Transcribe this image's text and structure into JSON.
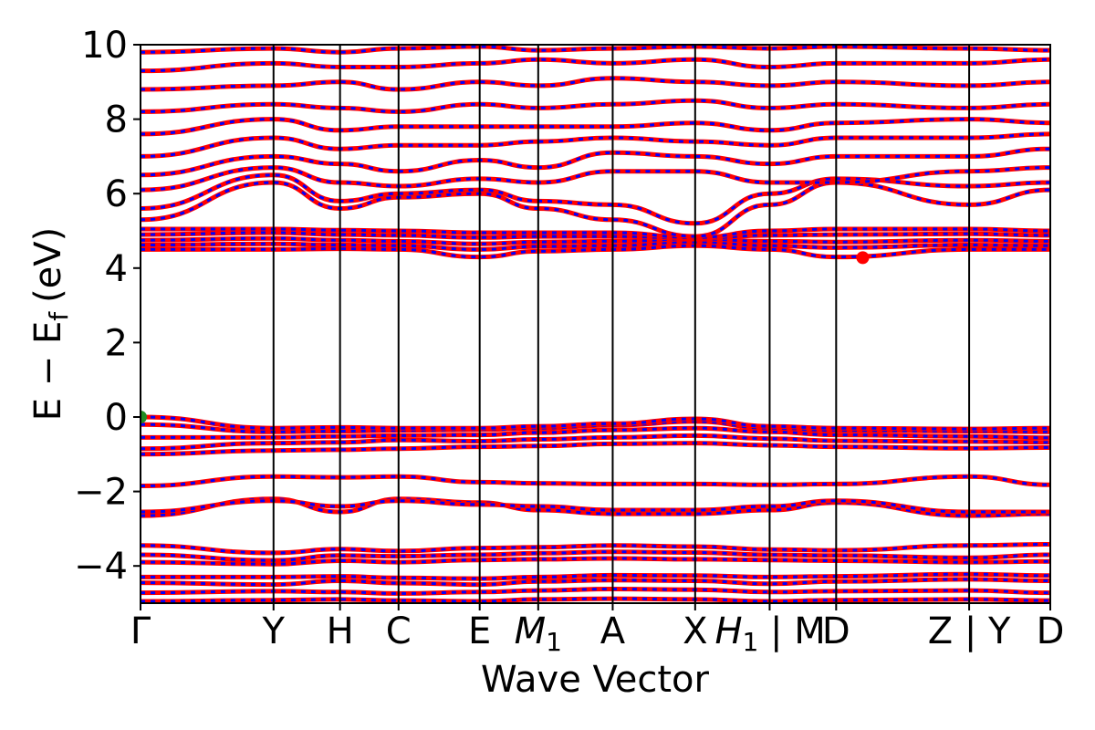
{
  "chart_data": {
    "type": "line",
    "title": "",
    "xlabel": "Wave Vector",
    "ylabel": "E − Eᶠ (eV)",
    "ylabel_parts": {
      "main": "E − E",
      "subscript": "f",
      "unit": "(eV)"
    },
    "ylim": [
      -5,
      10
    ],
    "yticks": [
      {
        "value": -4,
        "label": "−4"
      },
      {
        "value": -2,
        "label": "−2"
      },
      {
        "value": 0,
        "label": "0"
      },
      {
        "value": 2,
        "label": "2"
      },
      {
        "value": 4,
        "label": "4"
      },
      {
        "value": 6,
        "label": "6"
      },
      {
        "value": 8,
        "label": "8"
      },
      {
        "value": 10,
        "label": "10"
      }
    ],
    "xlim": [
      0,
      6.84
    ],
    "kpoints": [
      {
        "x": 0.0,
        "label": "Γ"
      },
      {
        "x": 1.0,
        "label": "Y"
      },
      {
        "x": 1.5,
        "label": "H"
      },
      {
        "x": 1.94,
        "label": "C"
      },
      {
        "x": 2.55,
        "label": "E"
      },
      {
        "x": 2.99,
        "label": "M",
        "sub": "1"
      },
      {
        "x": 3.55,
        "label": "A"
      },
      {
        "x": 4.17,
        "label": "X"
      },
      {
        "x": 4.73,
        "label": "H",
        "sub": "1",
        "suffix": " | M"
      },
      {
        "x": 5.23,
        "label": "D"
      },
      {
        "x": 6.23,
        "label": "Z | Y"
      },
      {
        "x": 6.84,
        "label": "D"
      }
    ],
    "grid": false,
    "legend": "none",
    "colors": {
      "band_a": "#ff0000",
      "band_b": "#0000ff",
      "kline": "#000000",
      "vbm": "#228b22",
      "cbm": "#ff0000"
    },
    "highlight_points": [
      {
        "name": "VBM",
        "x": 0.0,
        "y": 0.0,
        "color": "#228b22"
      },
      {
        "name": "CBM",
        "x": 5.43,
        "y": 4.28,
        "color": "#ff0000"
      }
    ],
    "bands": [
      {
        "name": "b1",
        "x": [
          0,
          1,
          1.5,
          1.94,
          2.55,
          2.99,
          3.55,
          4.17,
          4.73,
          5.23,
          6.23,
          6.84
        ],
        "y": [
          -4.95,
          -4.92,
          -4.9,
          -4.93,
          -4.95,
          -4.9,
          -4.88,
          -4.9,
          -4.95,
          -4.92,
          -4.9,
          -4.93
        ]
      },
      {
        "name": "b2",
        "x": [
          0,
          1,
          1.5,
          1.94,
          2.55,
          2.99,
          3.55,
          4.17,
          4.73,
          5.23,
          6.23,
          6.84
        ],
        "y": [
          -4.72,
          -4.68,
          -4.7,
          -4.74,
          -4.7,
          -4.66,
          -4.62,
          -4.64,
          -4.7,
          -4.68,
          -4.66,
          -4.72
        ]
      },
      {
        "name": "b3",
        "x": [
          0,
          1,
          1.5,
          1.94,
          2.55,
          2.99,
          3.55,
          4.17,
          4.73,
          5.23,
          6.23,
          6.84
        ],
        "y": [
          -4.45,
          -4.5,
          -4.4,
          -4.46,
          -4.5,
          -4.42,
          -4.38,
          -4.4,
          -4.48,
          -4.42,
          -4.36,
          -4.4
        ]
      },
      {
        "name": "b4",
        "x": [
          0,
          1,
          1.5,
          1.94,
          2.55,
          2.99,
          3.55,
          4.17,
          4.73,
          5.23,
          6.23,
          6.84
        ],
        "y": [
          -4.3,
          -4.3,
          -4.28,
          -4.32,
          -4.34,
          -4.3,
          -4.25,
          -4.26,
          -4.3,
          -4.28,
          -4.22,
          -4.26
        ]
      },
      {
        "name": "b5",
        "x": [
          0,
          1,
          1.5,
          1.94,
          2.55,
          2.99,
          3.55,
          4.17,
          4.73,
          5.23,
          6.23,
          6.84
        ],
        "y": [
          -3.9,
          -3.95,
          -3.86,
          -3.9,
          -3.84,
          -3.82,
          -3.8,
          -3.82,
          -3.84,
          -3.86,
          -3.9,
          -3.88
        ]
      },
      {
        "name": "b6",
        "x": [
          0,
          1,
          1.5,
          1.94,
          2.55,
          2.99,
          3.55,
          4.17,
          4.73,
          5.23,
          6.23,
          6.84
        ],
        "y": [
          -3.7,
          -3.85,
          -3.72,
          -3.74,
          -3.7,
          -3.66,
          -3.62,
          -3.64,
          -3.7,
          -3.72,
          -3.78,
          -3.7
        ]
      },
      {
        "name": "b7",
        "x": [
          0,
          1,
          1.5,
          1.94,
          2.55,
          2.99,
          3.55,
          4.17,
          4.73,
          5.23,
          6.23,
          6.84
        ],
        "y": [
          -3.45,
          -3.65,
          -3.55,
          -3.6,
          -3.52,
          -3.5,
          -3.45,
          -3.48,
          -3.56,
          -3.58,
          -3.45,
          -3.42
        ]
      },
      {
        "name": "b8",
        "x": [
          0,
          1,
          1.5,
          1.94,
          2.55,
          2.99,
          3.55,
          4.17,
          4.73,
          5.23,
          6.23,
          6.84
        ],
        "y": [
          -2.65,
          -2.2,
          -2.55,
          -2.2,
          -2.3,
          -2.5,
          -2.6,
          -2.6,
          -2.5,
          -2.3,
          -2.65,
          -2.6
        ]
      },
      {
        "name": "b9",
        "x": [
          0,
          1,
          1.5,
          1.94,
          2.55,
          2.99,
          3.55,
          4.17,
          4.73,
          5.23,
          6.23,
          6.84
        ],
        "y": [
          -2.55,
          -2.25,
          -2.4,
          -2.25,
          -2.35,
          -2.4,
          -2.5,
          -2.5,
          -2.4,
          -2.25,
          -2.55,
          -2.55
        ]
      },
      {
        "name": "b10",
        "x": [
          0,
          1,
          1.5,
          1.94,
          2.55,
          2.99,
          3.55,
          4.17,
          4.73,
          5.23,
          6.23,
          6.84
        ],
        "y": [
          -1.85,
          -1.6,
          -1.62,
          -1.6,
          -1.75,
          -1.78,
          -1.8,
          -1.8,
          -1.82,
          -1.8,
          -1.6,
          -1.82
        ]
      },
      {
        "name": "b11",
        "x": [
          0,
          1,
          1.5,
          1.94,
          2.55,
          2.99,
          3.55,
          4.17,
          4.73,
          5.23,
          6.23,
          6.84
        ],
        "y": [
          -1.0,
          -0.9,
          -0.88,
          -0.85,
          -0.8,
          -0.78,
          -0.72,
          -0.7,
          -0.76,
          -0.8,
          -0.84,
          -0.82
        ]
      },
      {
        "name": "b12",
        "x": [
          0,
          1,
          1.5,
          1.94,
          2.55,
          2.99,
          3.55,
          4.17,
          4.73,
          5.23,
          6.23,
          6.84
        ],
        "y": [
          -0.85,
          -0.7,
          -0.68,
          -0.62,
          -0.65,
          -0.6,
          -0.55,
          -0.5,
          -0.58,
          -0.64,
          -0.66,
          -0.68
        ]
      },
      {
        "name": "b13",
        "x": [
          0,
          1,
          1.5,
          1.94,
          2.55,
          2.99,
          3.55,
          4.17,
          4.73,
          5.23,
          6.23,
          6.84
        ],
        "y": [
          -0.55,
          -0.55,
          -0.52,
          -0.5,
          -0.48,
          -0.42,
          -0.35,
          -0.3,
          -0.4,
          -0.48,
          -0.52,
          -0.56
        ]
      },
      {
        "name": "b14",
        "x": [
          0,
          1,
          1.5,
          1.94,
          2.55,
          2.99,
          3.55,
          4.17,
          4.73,
          5.23,
          6.23,
          6.84
        ],
        "y": [
          -0.2,
          -0.4,
          -0.38,
          -0.36,
          -0.34,
          -0.3,
          -0.22,
          -0.12,
          -0.3,
          -0.36,
          -0.38,
          -0.4
        ]
      },
      {
        "name": "b15",
        "x": [
          0,
          1,
          1.5,
          1.94,
          2.55,
          2.99,
          3.55,
          4.17,
          4.73,
          5.23,
          6.23,
          6.84
        ],
        "y": [
          0.0,
          -0.3,
          -0.28,
          -0.3,
          -0.3,
          -0.25,
          -0.18,
          -0.05,
          -0.25,
          -0.3,
          -0.32,
          -0.3
        ]
      },
      {
        "name": "b16",
        "x": [
          0,
          1,
          1.5,
          1.94,
          2.55,
          2.99,
          3.55,
          4.17,
          4.73,
          5.23,
          6.23,
          6.84
        ],
        "y": [
          4.5,
          4.5,
          4.52,
          4.5,
          4.3,
          4.45,
          4.5,
          4.6,
          4.5,
          4.3,
          4.5,
          4.5
        ]
      },
      {
        "name": "b17",
        "x": [
          0,
          1,
          1.5,
          1.94,
          2.55,
          2.99,
          3.55,
          4.17,
          4.73,
          5.23,
          6.23,
          6.84
        ],
        "y": [
          4.62,
          4.65,
          4.62,
          4.6,
          4.5,
          4.58,
          4.6,
          4.7,
          4.6,
          4.55,
          4.62,
          4.6
        ]
      },
      {
        "name": "b18",
        "x": [
          0,
          1,
          1.5,
          1.94,
          2.55,
          2.99,
          3.55,
          4.17,
          4.73,
          5.23,
          6.23,
          6.84
        ],
        "y": [
          4.75,
          4.8,
          4.75,
          4.72,
          4.65,
          4.7,
          4.72,
          4.78,
          4.72,
          4.7,
          4.75,
          4.72
        ]
      },
      {
        "name": "b19",
        "x": [
          0,
          1,
          1.5,
          1.94,
          2.55,
          2.99,
          3.55,
          4.17,
          4.73,
          5.23,
          6.23,
          6.84
        ],
        "y": [
          4.9,
          4.95,
          4.9,
          4.88,
          4.82,
          4.85,
          4.85,
          4.8,
          4.88,
          4.9,
          4.92,
          4.88
        ]
      },
      {
        "name": "b20",
        "x": [
          0,
          1,
          1.5,
          1.94,
          2.55,
          2.99,
          3.55,
          4.17,
          4.73,
          5.23,
          6.23,
          6.84
        ],
        "y": [
          5.05,
          5.05,
          5.02,
          5.0,
          4.95,
          4.95,
          4.95,
          4.82,
          5.0,
          5.05,
          5.05,
          5.0
        ]
      },
      {
        "name": "b21",
        "x": [
          0,
          1,
          1.5,
          1.94,
          2.55,
          2.99,
          3.55,
          4.17,
          4.73,
          5.23,
          6.23,
          6.84
        ],
        "y": [
          5.3,
          6.3,
          5.6,
          5.9,
          6.0,
          5.6,
          5.3,
          4.85,
          5.7,
          6.3,
          5.7,
          6.1
        ]
      },
      {
        "name": "b22",
        "x": [
          0,
          1,
          1.5,
          1.94,
          2.55,
          2.99,
          3.55,
          4.17,
          4.73,
          5.23,
          6.23,
          6.84
        ],
        "y": [
          5.6,
          6.5,
          5.8,
          6.0,
          6.1,
          5.8,
          5.7,
          5.2,
          6.0,
          6.4,
          6.2,
          6.3
        ]
      },
      {
        "name": "b23",
        "x": [
          0,
          1,
          1.5,
          1.94,
          2.55,
          2.99,
          3.55,
          4.17,
          4.73,
          5.23,
          6.23,
          6.84
        ],
        "y": [
          6.1,
          6.7,
          6.3,
          6.2,
          6.4,
          6.3,
          6.6,
          6.6,
          6.3,
          6.3,
          6.6,
          6.7
        ]
      },
      {
        "name": "b24",
        "x": [
          0,
          1,
          1.5,
          1.94,
          2.55,
          2.99,
          3.55,
          4.17,
          4.73,
          5.23,
          6.23,
          6.84
        ],
        "y": [
          6.5,
          7.0,
          6.8,
          6.6,
          6.9,
          6.7,
          7.1,
          7.0,
          6.8,
          7.0,
          7.0,
          7.2
        ]
      },
      {
        "name": "b25",
        "x": [
          0,
          1,
          1.5,
          1.94,
          2.55,
          2.99,
          3.55,
          4.17,
          4.73,
          5.23,
          6.23,
          6.84
        ],
        "y": [
          7.0,
          7.5,
          7.2,
          7.3,
          7.3,
          7.4,
          7.5,
          7.4,
          7.3,
          7.5,
          7.5,
          7.6
        ]
      },
      {
        "name": "b26",
        "x": [
          0,
          1,
          1.5,
          1.94,
          2.55,
          2.99,
          3.55,
          4.17,
          4.73,
          5.23,
          6.23,
          6.84
        ],
        "y": [
          7.6,
          8.0,
          7.7,
          7.8,
          7.8,
          7.8,
          7.8,
          7.9,
          7.7,
          7.9,
          8.0,
          7.9
        ]
      },
      {
        "name": "b27",
        "x": [
          0,
          1,
          1.5,
          1.94,
          2.55,
          2.99,
          3.55,
          4.17,
          4.73,
          5.23,
          6.23,
          6.84
        ],
        "y": [
          8.2,
          8.4,
          8.3,
          8.2,
          8.4,
          8.3,
          8.4,
          8.5,
          8.3,
          8.4,
          8.3,
          8.4
        ]
      },
      {
        "name": "b28",
        "x": [
          0,
          1,
          1.5,
          1.94,
          2.55,
          2.99,
          3.55,
          4.17,
          4.73,
          5.23,
          6.23,
          6.84
        ],
        "y": [
          8.8,
          8.9,
          9.0,
          8.8,
          9.0,
          8.9,
          9.1,
          9.0,
          8.9,
          9.0,
          8.9,
          9.0
        ]
      },
      {
        "name": "b29",
        "x": [
          0,
          1,
          1.5,
          1.94,
          2.55,
          2.99,
          3.55,
          4.17,
          4.73,
          5.23,
          6.23,
          6.84
        ],
        "y": [
          9.3,
          9.5,
          9.4,
          9.4,
          9.5,
          9.6,
          9.5,
          9.6,
          9.4,
          9.5,
          9.5,
          9.6
        ]
      },
      {
        "name": "b30",
        "x": [
          0,
          1,
          1.5,
          1.94,
          2.55,
          2.99,
          3.55,
          4.17,
          4.73,
          5.23,
          6.23,
          6.84
        ],
        "y": [
          9.8,
          9.9,
          9.8,
          9.9,
          9.95,
          9.85,
          9.9,
          9.95,
          9.9,
          9.95,
          9.9,
          9.85
        ]
      }
    ]
  }
}
